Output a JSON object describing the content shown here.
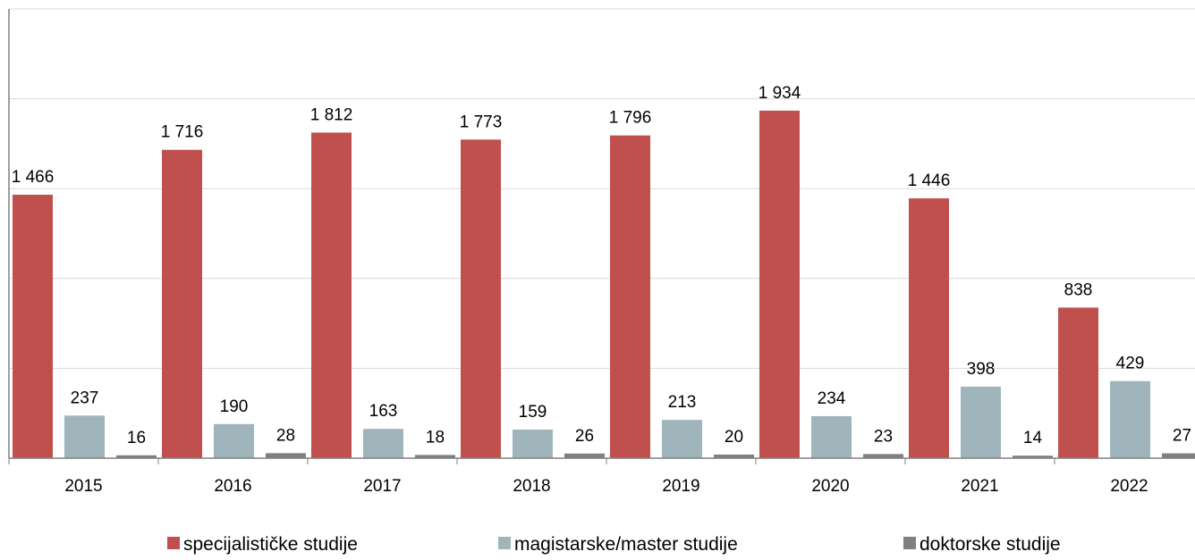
{
  "chart_data": {
    "type": "bar",
    "categories": [
      "2015",
      "2016",
      "2017",
      "2018",
      "2019",
      "2020",
      "2021",
      "2022"
    ],
    "series": [
      {
        "name": "specijalističke studije",
        "color": "#C0504D",
        "values": [
          1466,
          1716,
          1812,
          1773,
          1796,
          1934,
          1446,
          838
        ],
        "labels": [
          "1 466",
          "1 716",
          "1 812",
          "1 773",
          "1 796",
          "1 934",
          "1 446",
          "838"
        ]
      },
      {
        "name": "magistarske/master studije",
        "color": "#9FB4BB",
        "values": [
          237,
          190,
          163,
          159,
          213,
          234,
          398,
          429
        ],
        "labels": [
          "237",
          "190",
          "163",
          "159",
          "213",
          "234",
          "398",
          "429"
        ]
      },
      {
        "name": "doktorske studije",
        "color": "#808080",
        "values": [
          16,
          28,
          18,
          26,
          20,
          23,
          14,
          27
        ],
        "labels": [
          "16",
          "28",
          "18",
          "26",
          "20",
          "23",
          "14",
          "27"
        ]
      }
    ],
    "ylim": [
      0,
      2500
    ],
    "grid": true,
    "legend": "bottom"
  }
}
